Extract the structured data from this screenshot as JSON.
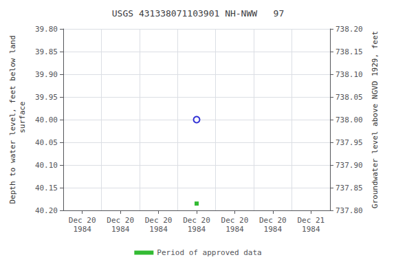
{
  "chart_data": {
    "type": "scatter",
    "title": "USGS 431338071103901 NH-NWW   97",
    "ylabel": "Depth to water level, feet below land\n surface",
    "y2label": "Groundwater level above NGVD 1929, feet",
    "categories": [
      "Dec 20\n1984",
      "Dec 20\n1984",
      "Dec 20\n1984",
      "Dec 20\n1984",
      "Dec 20\n1984",
      "Dec 20\n1984",
      "Dec 21\n1984"
    ],
    "series": [
      {
        "color": "#0000cc",
        "marker": "open_circle",
        "values": [
          null,
          null,
          null,
          40.0,
          null,
          null,
          null
        ]
      },
      {
        "name": "Period of approved data",
        "color": "#00aa00",
        "marker": "square",
        "values": [
          null,
          null,
          null,
          40.185,
          null,
          null,
          null
        ]
      }
    ],
    "ylim": [
      40.2,
      39.8
    ],
    "yticks": [
      {
        "value": 39.8,
        "label": "39.80"
      },
      {
        "value": 39.85,
        "label": "39.85"
      },
      {
        "value": 39.9,
        "label": "39.90"
      },
      {
        "value": 39.95,
        "label": "39.95"
      },
      {
        "value": 40.0,
        "label": "40.00"
      },
      {
        "value": 40.05,
        "label": "40.05"
      },
      {
        "value": 40.1,
        "label": "40.10"
      },
      {
        "value": 40.15,
        "label": "40.15"
      },
      {
        "value": 40.2,
        "label": "40.20"
      }
    ],
    "y2lim": [
      737.8,
      738.2
    ],
    "y2ticks": [
      {
        "value": 738.2,
        "label": "738.20"
      },
      {
        "value": 738.15,
        "label": "738.15"
      },
      {
        "value": 738.1,
        "label": "738.10"
      },
      {
        "value": 738.05,
        "label": "738.05"
      },
      {
        "value": 738.0,
        "label": "738.00"
      },
      {
        "value": 737.95,
        "label": "737.95"
      },
      {
        "value": 737.9,
        "label": "737.90"
      },
      {
        "value": 737.85,
        "label": "737.85"
      },
      {
        "value": 737.8,
        "label": "737.80"
      }
    ],
    "grid": true,
    "legend": "bottom"
  }
}
